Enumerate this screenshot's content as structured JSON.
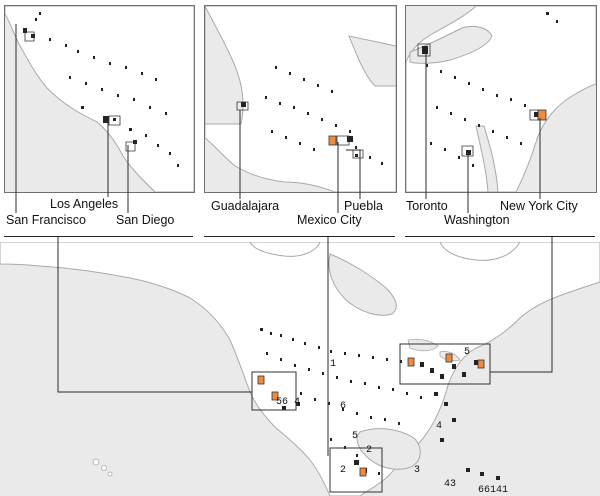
{
  "map": {
    "colors": {
      "water": "#eaeaea",
      "land": "#ffffff",
      "coast": "#a9a9a9",
      "panel_border": "#6f6f6f",
      "highlight": "#f08a3c",
      "leader": "#2b2b2b"
    }
  },
  "panels": [
    {
      "id": "west",
      "cities": [
        {
          "name": "San Francisco"
        },
        {
          "name": "Los Angeles"
        },
        {
          "name": "San Diego"
        }
      ]
    },
    {
      "id": "mexico",
      "cities": [
        {
          "name": "Guadalajara"
        },
        {
          "name": "Mexico City"
        },
        {
          "name": "Puebla"
        }
      ]
    },
    {
      "id": "east",
      "cities": [
        {
          "name": "Toronto"
        },
        {
          "name": "Washington"
        },
        {
          "name": "New York City"
        }
      ]
    }
  ],
  "overview": {
    "glyph_labels": [
      "2",
      "5",
      "56",
      "4",
      "6",
      "3",
      "43",
      "66141",
      "1",
      "2",
      "4",
      "5"
    ]
  }
}
